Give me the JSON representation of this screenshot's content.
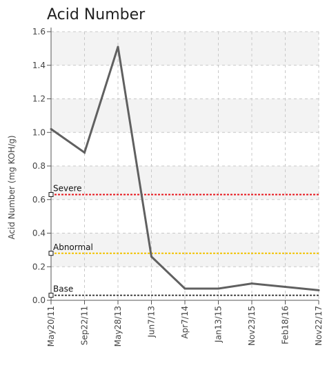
{
  "chart_data": {
    "type": "line",
    "title": "Acid Number",
    "xlabel": "",
    "ylabel": "Acid Number (mg KOH/g)",
    "ylim": [
      0,
      1.6
    ],
    "yticks": [
      "0.0",
      "0.2",
      "0.4",
      "0.6",
      "0.8",
      "1.0",
      "1.2",
      "1.4",
      "1.6"
    ],
    "grid": true,
    "categories": [
      "May20/11",
      "Sep22/11",
      "May28/13",
      "Jun7/13",
      "Apr7/14",
      "Jan13/15",
      "Nov23/15",
      "Feb18/16",
      "Nov22/17"
    ],
    "series": [
      {
        "values": [
          1.02,
          0.88,
          1.51,
          0.26,
          0.07,
          0.07,
          0.1,
          0.08,
          0.06
        ],
        "color": "#606060"
      }
    ],
    "thresholds": [
      {
        "label": "Severe",
        "value": 0.63,
        "color": "#e8141b"
      },
      {
        "label": "Abnormal",
        "value": 0.28,
        "color": "#f2c200"
      },
      {
        "label": "Base",
        "value": 0.03,
        "color": "#444444"
      }
    ],
    "colors": {
      "band": "#f3f3f3",
      "grid": "#c8c8c8",
      "axis": "#555555"
    }
  }
}
